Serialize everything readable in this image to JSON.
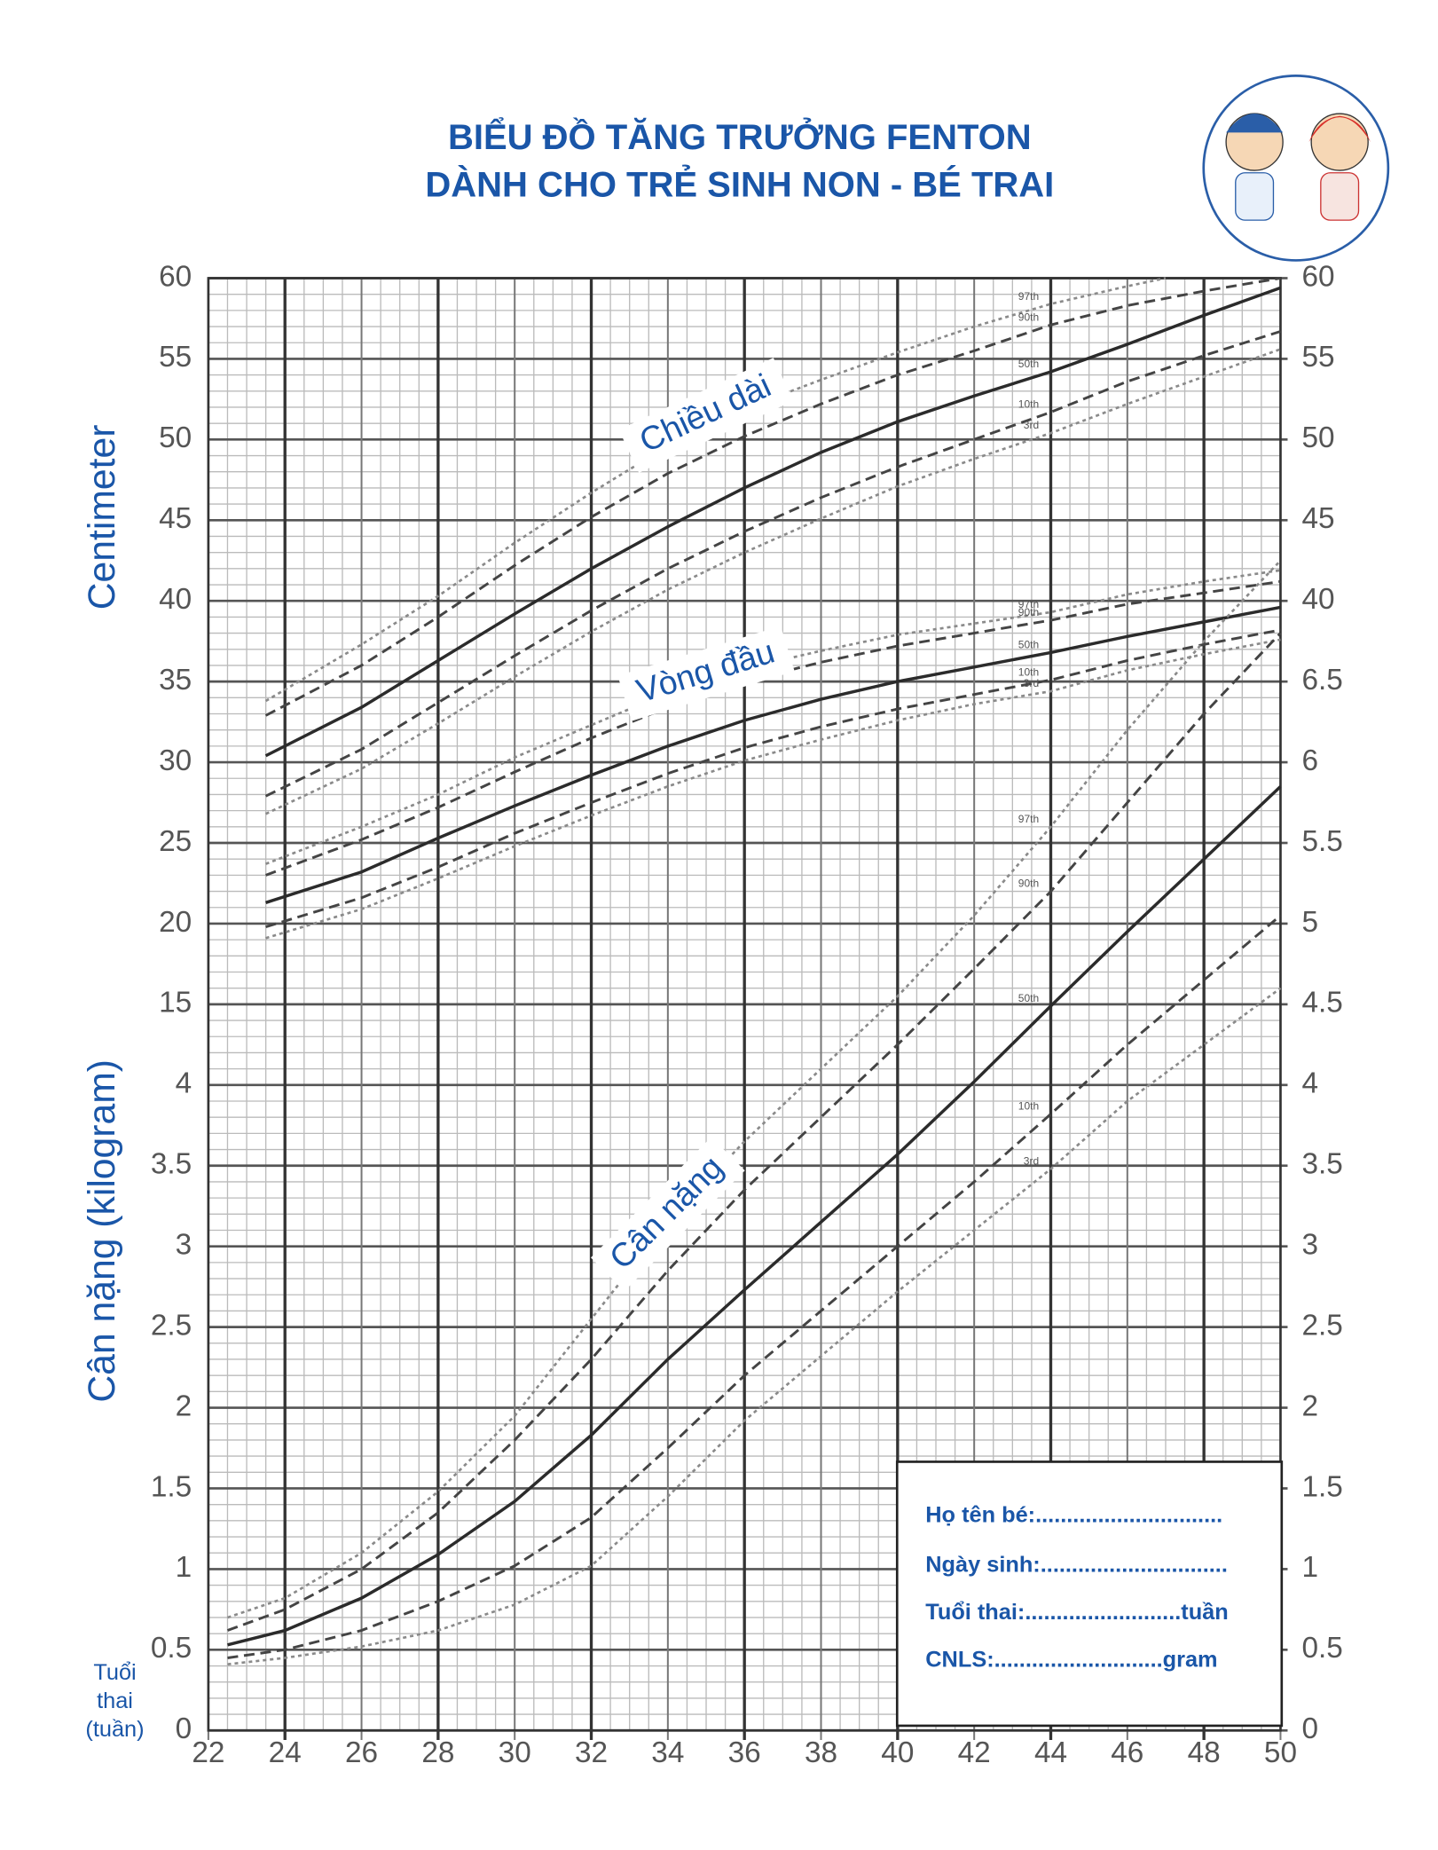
{
  "chart_data": {
    "type": "line",
    "title": [
      "BIỂU ĐỒ TĂNG TRƯỞNG FENTON",
      "DÀNH CHO TRẺ SINH NON - BÉ TRAI"
    ],
    "y_label": "Centimeter",
    "y2_label": "Cân nặng (kilogram)",
    "x_label": [
      "Tuổi",
      "thai",
      "(tuần)"
    ],
    "xlim": [
      22,
      50
    ],
    "xticks": [
      22,
      24,
      26,
      28,
      30,
      32,
      34,
      36,
      38,
      40,
      42,
      44,
      46,
      48,
      50
    ],
    "ylim": [
      -30,
      60
    ],
    "yticks": [
      15,
      20,
      25,
      30,
      35,
      40,
      45,
      50,
      55,
      60
    ],
    "y2lim": [
      0,
      9
    ],
    "y2ticks": [
      0,
      0.5,
      1,
      1.5,
      2,
      2.5,
      3,
      3.5,
      4
    ],
    "right_yticks": [
      40,
      45,
      50,
      55,
      60
    ],
    "right_y2ticks": [
      0,
      0.5,
      1,
      1.5,
      2,
      2.5,
      3,
      3.5,
      4,
      4.5,
      5,
      5.5,
      6,
      6.5
    ],
    "grid": true,
    "group_labels": [
      {
        "text": "Chiều dài",
        "x": 35,
        "value": 51.5,
        "axis": "y",
        "angle": -25
      },
      {
        "text": "Vòng đầu",
        "x": 35,
        "value": 35.5,
        "axis": "y",
        "angle": -17
      },
      {
        "text": "Cân nặng",
        "x": 34,
        "value": 3.2,
        "axis": "y2",
        "angle": -45
      }
    ],
    "series": [
      {
        "name": "97th",
        "axis": "y",
        "color": "#8a8a8a",
        "style": "dotted",
        "x": [
          23.5,
          26,
          28,
          30,
          32,
          34,
          36,
          38,
          40,
          42,
          44,
          46,
          47
        ],
        "values": [
          33.8,
          37.3,
          40.3,
          43.6,
          46.7,
          49.6,
          51.9,
          53.7,
          55.4,
          57.0,
          58.4,
          59.5,
          60
        ]
      },
      {
        "name": "90th",
        "axis": "y",
        "color": "#444444",
        "style": "dashed",
        "x": [
          23.5,
          26,
          28,
          30,
          32,
          34,
          36,
          38,
          40,
          42,
          44,
          46,
          48,
          50
        ],
        "values": [
          32.9,
          36.0,
          39.0,
          42.2,
          45.2,
          47.9,
          50.2,
          52.2,
          54.0,
          55.5,
          57.1,
          58.3,
          59.2,
          60.0
        ]
      },
      {
        "name": "50th",
        "axis": "y",
        "color": "#2b2b2b",
        "style": "solid",
        "x": [
          23.5,
          26,
          28,
          30,
          32,
          34,
          36,
          38,
          40,
          42,
          44,
          46,
          48,
          50
        ],
        "values": [
          30.4,
          33.4,
          36.3,
          39.2,
          42.0,
          44.6,
          47.0,
          49.2,
          51.1,
          52.7,
          54.2,
          55.9,
          57.7,
          59.4
        ]
      },
      {
        "name": "10th",
        "axis": "y",
        "color": "#444444",
        "style": "dashed",
        "x": [
          23.5,
          26,
          28,
          30,
          32,
          34,
          36,
          38,
          40,
          42,
          44,
          46,
          48,
          50
        ],
        "values": [
          27.9,
          30.8,
          33.7,
          36.6,
          39.4,
          42.0,
          44.3,
          46.4,
          48.3,
          50.0,
          51.7,
          53.6,
          55.2,
          56.7
        ]
      },
      {
        "name": "3rd",
        "axis": "y",
        "color": "#8a8a8a",
        "style": "dotted",
        "x": [
          23.5,
          26,
          28,
          30,
          32,
          34,
          36,
          38,
          40,
          42,
          44,
          46,
          48,
          50
        ],
        "values": [
          26.8,
          29.6,
          32.4,
          35.3,
          38.1,
          40.7,
          43.0,
          45.1,
          47.1,
          48.8,
          50.4,
          52.2,
          53.9,
          55.6
        ]
      },
      {
        "name": "97th",
        "axis": "y",
        "color": "#8a8a8a",
        "style": "dotted",
        "x": [
          23.5,
          26,
          28,
          30,
          32,
          34,
          36,
          38,
          40,
          42,
          44,
          46,
          48,
          50
        ],
        "values": [
          23.7,
          26.0,
          28.0,
          30.3,
          32.3,
          34.3,
          35.8,
          36.9,
          37.9,
          38.6,
          39.3,
          40.4,
          41.2,
          41.9
        ]
      },
      {
        "name": "90th",
        "axis": "y",
        "color": "#444444",
        "style": "dashed",
        "x": [
          23.5,
          26,
          28,
          30,
          32,
          34,
          36,
          38,
          40,
          42,
          44,
          46,
          48,
          50
        ],
        "values": [
          23.0,
          25.2,
          27.2,
          29.4,
          31.5,
          33.4,
          35.0,
          36.2,
          37.2,
          38.0,
          38.8,
          39.8,
          40.5,
          41.2
        ]
      },
      {
        "name": "50th",
        "axis": "y",
        "color": "#2b2b2b",
        "style": "solid",
        "x": [
          23.5,
          26,
          28,
          30,
          32,
          34,
          36,
          38,
          40,
          42,
          44,
          46,
          48,
          50
        ],
        "values": [
          21.3,
          23.2,
          25.3,
          27.3,
          29.2,
          31.0,
          32.6,
          33.9,
          35.0,
          35.9,
          36.8,
          37.8,
          38.7,
          39.6
        ]
      },
      {
        "name": "10th",
        "axis": "y",
        "color": "#444444",
        "style": "dashed",
        "x": [
          23.5,
          26,
          28,
          30,
          32,
          34,
          36,
          38,
          40,
          42,
          44,
          46,
          48,
          50
        ],
        "values": [
          19.8,
          21.6,
          23.5,
          25.6,
          27.5,
          29.3,
          30.9,
          32.2,
          33.3,
          34.2,
          35.1,
          36.3,
          37.3,
          38.2
        ]
      },
      {
        "name": "3rd",
        "axis": "y",
        "color": "#8a8a8a",
        "style": "dotted",
        "x": [
          23.5,
          26,
          28,
          30,
          32,
          34,
          36,
          38,
          40,
          42,
          44,
          46,
          48,
          50
        ],
        "values": [
          19.1,
          20.9,
          22.8,
          24.8,
          26.7,
          28.5,
          30.1,
          31.4,
          32.6,
          33.6,
          34.4,
          35.7,
          36.7,
          37.6
        ]
      },
      {
        "name": "97th",
        "axis": "y2",
        "color": "#8a8a8a",
        "style": "dotted",
        "x": [
          22.5,
          24,
          26,
          28,
          30,
          32,
          34,
          36,
          38,
          40,
          42,
          44,
          46,
          48,
          50
        ],
        "values": [
          0.7,
          0.82,
          1.1,
          1.48,
          1.95,
          2.55,
          3.15,
          3.65,
          4.1,
          4.55,
          5.05,
          5.6,
          6.2,
          6.75,
          7.25
        ]
      },
      {
        "name": "90th",
        "axis": "y2",
        "color": "#444444",
        "style": "dashed",
        "x": [
          22.5,
          24,
          26,
          28,
          30,
          32,
          34,
          36,
          38,
          40,
          42,
          44,
          46,
          48,
          50
        ],
        "values": [
          0.62,
          0.75,
          1.0,
          1.35,
          1.8,
          2.3,
          2.85,
          3.35,
          3.8,
          4.25,
          4.72,
          5.2,
          5.75,
          6.3,
          6.8
        ]
      },
      {
        "name": "50th",
        "axis": "y2",
        "color": "#2b2b2b",
        "style": "solid",
        "x": [
          22.5,
          24,
          26,
          28,
          30,
          32,
          34,
          36,
          38,
          40,
          42,
          44,
          46,
          48,
          50
        ],
        "values": [
          0.53,
          0.62,
          0.82,
          1.09,
          1.42,
          1.83,
          2.3,
          2.73,
          3.15,
          3.57,
          4.02,
          4.49,
          4.95,
          5.4,
          5.85
        ]
      },
      {
        "name": "10th",
        "axis": "y2",
        "color": "#444444",
        "style": "dashed",
        "x": [
          22.5,
          24,
          26,
          28,
          30,
          32,
          34,
          36,
          38,
          40,
          42,
          44,
          46,
          48,
          50
        ],
        "values": [
          0.45,
          0.5,
          0.62,
          0.8,
          1.02,
          1.32,
          1.75,
          2.2,
          2.6,
          3.0,
          3.4,
          3.82,
          4.25,
          4.65,
          5.05
        ]
      },
      {
        "name": "3rd",
        "axis": "y2",
        "color": "#8a8a8a",
        "style": "dotted",
        "x": [
          22.5,
          24,
          26,
          28,
          30,
          32,
          34,
          36,
          38,
          40,
          42,
          44,
          46,
          48,
          50
        ],
        "values": [
          0.41,
          0.45,
          0.52,
          0.62,
          0.78,
          1.02,
          1.45,
          1.92,
          2.32,
          2.72,
          3.1,
          3.48,
          3.9,
          4.25,
          4.6
        ]
      }
    ],
    "info_box": [
      "Họ tên bé:..............................",
      "Ngày sinh:..............................",
      "Tuổi thai:.........................tuần",
      "CNLS:...........................gram"
    ]
  }
}
